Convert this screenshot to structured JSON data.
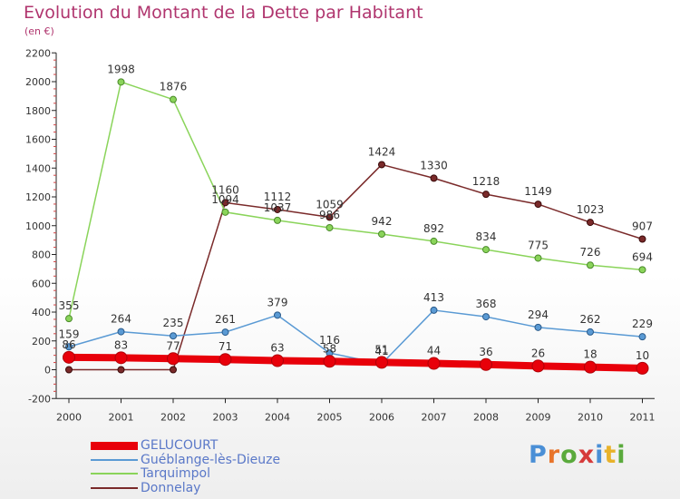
{
  "header": {
    "title": "Evolution du Montant de la Dette par Habitant",
    "subtitle": "(en €)"
  },
  "brand": {
    "text": "Proxiti",
    "letter_colors": [
      "#4a8fd6",
      "#e8742a",
      "#5aaa3c",
      "#d63a3a",
      "#4a8fd6",
      "#e8b22a",
      "#5aaa3c"
    ]
  },
  "chart_data": {
    "type": "line",
    "categories": [
      "2000",
      "2001",
      "2002",
      "2003",
      "2004",
      "2005",
      "2006",
      "2007",
      "2008",
      "2009",
      "2010",
      "2011"
    ],
    "ylim": [
      -200,
      2200
    ],
    "yticks": [
      -200,
      0,
      200,
      400,
      600,
      800,
      1000,
      1200,
      1400,
      1600,
      1800,
      2000,
      2200
    ],
    "grid": false,
    "legend_position": "bottom-left",
    "series": [
      {
        "name": "GELUCOURT",
        "color": "#e8000a",
        "values": [
          86,
          83,
          77,
          71,
          63,
          58,
          51,
          44,
          36,
          26,
          18,
          10
        ]
      },
      {
        "name": "Guéblange-lès-Dieuze",
        "color": "#5a9ad4",
        "values": [
          159,
          264,
          235,
          261,
          379,
          116,
          41,
          413,
          368,
          294,
          262,
          229
        ]
      },
      {
        "name": "Tarquimpol",
        "color": "#8ad45a",
        "values": [
          355,
          1998,
          1876,
          1094,
          1037,
          986,
          942,
          892,
          834,
          775,
          726,
          694
        ]
      },
      {
        "name": "Donnelay",
        "color": "#7a2a2a",
        "values": [
          0,
          0,
          0,
          1160,
          1112,
          1059,
          1424,
          1330,
          1218,
          1149,
          1023,
          907
        ]
      }
    ]
  }
}
